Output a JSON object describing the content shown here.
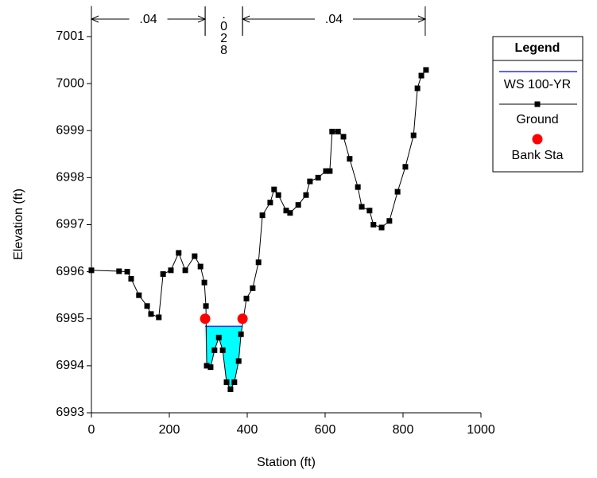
{
  "chart_data": {
    "type": "line",
    "x_label": "Station (ft)",
    "y_label": "Elevation (ft)",
    "xlim": [
      0,
      1000
    ],
    "ylim": [
      6993,
      7001.6
    ],
    "xticks": [
      0,
      200,
      400,
      600,
      800,
      1000
    ],
    "yticks": [
      6993,
      6994,
      6995,
      6996,
      6997,
      6998,
      6999,
      7000,
      7001
    ],
    "legend_title": "Legend",
    "legend_position": "right",
    "n_values": [
      {
        "label": ".04",
        "start": 0,
        "end": 292
      },
      {
        "label": ".028",
        "start": 292,
        "end": 388
      },
      {
        "label": ".04",
        "start": 388,
        "end": 857
      }
    ],
    "series": [
      {
        "name": "WS 100-YR",
        "color": "#0000ff",
        "x": [
          292,
          388
        ],
        "values": [
          6994.84,
          6994.84
        ]
      },
      {
        "name": "Ground",
        "color": "#000000",
        "x": [
          0,
          71,
          92,
          102,
          122,
          143,
          153,
          173,
          184,
          204,
          224,
          241,
          265,
          280,
          290,
          294,
          296,
          306,
          316,
          327,
          337,
          347,
          357,
          367,
          378,
          384,
          398,
          414,
          429,
          439,
          459,
          469,
          480,
          500,
          510,
          531,
          551,
          561,
          582,
          602,
          612,
          618,
          633,
          647,
          663,
          684,
          694,
          714,
          724,
          745,
          765,
          786,
          806,
          827,
          837,
          847,
          859
        ],
        "values": [
          6996.03,
          6996.01,
          6996.0,
          6995.85,
          6995.5,
          6995.27,
          6995.1,
          6995.03,
          6995.95,
          6996.03,
          6996.4,
          6996.03,
          6996.33,
          6996.11,
          6995.77,
          6995.27,
          6994.0,
          6993.97,
          6994.33,
          6994.6,
          6994.33,
          6993.65,
          6993.5,
          6993.65,
          6994.1,
          6994.67,
          6995.43,
          6995.65,
          6996.2,
          6997.2,
          6997.47,
          6997.75,
          6997.63,
          6997.3,
          6997.25,
          6997.42,
          6997.63,
          6997.92,
          6998.0,
          6998.14,
          6998.14,
          6998.98,
          6998.98,
          6998.87,
          6998.4,
          6997.8,
          6997.38,
          6997.3,
          6997.0,
          6996.94,
          6997.08,
          6997.7,
          6998.23,
          6998.9,
          6999.9,
          7000.17,
          7000.29
        ]
      },
      {
        "name": "Bank Sta",
        "color": "#ff0000",
        "x": [
          292,
          388
        ],
        "values": [
          6995.0,
          6995.0
        ]
      }
    ]
  }
}
